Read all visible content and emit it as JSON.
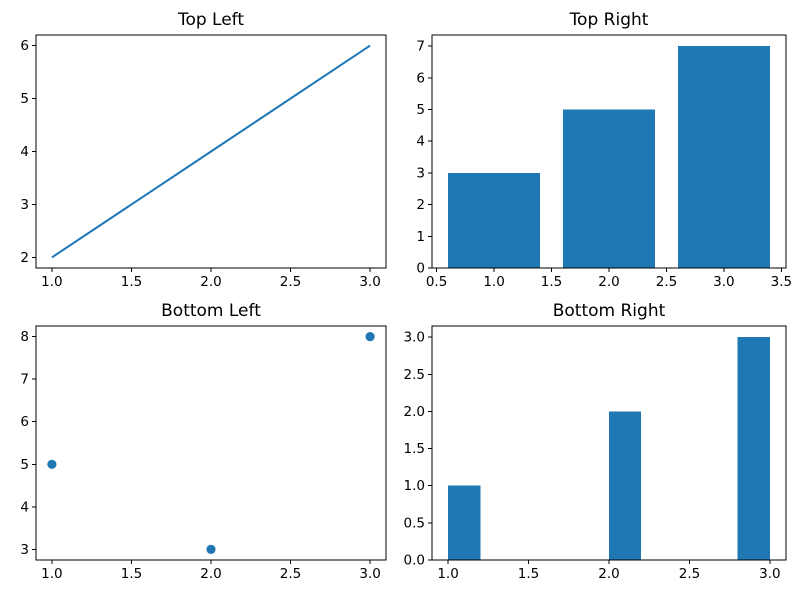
{
  "figure": {
    "background": "#ffffff",
    "accent": "#1f77b4",
    "frame_color": "#000000",
    "text_color": "#000000"
  },
  "chart_data": [
    {
      "type": "line",
      "title": "Top Left",
      "x": [
        1,
        2,
        3
      ],
      "y": [
        2,
        4,
        6
      ],
      "color": "#1f77b4",
      "xlim": [
        0.9,
        3.1
      ],
      "ylim": [
        1.8,
        6.2
      ],
      "xticks": {
        "values": [
          1.0,
          1.5,
          2.0,
          2.5,
          3.0
        ],
        "labels": [
          "1.0",
          "1.5",
          "2.0",
          "2.5",
          "3.0"
        ]
      },
      "yticks": {
        "values": [
          2,
          3,
          4,
          5,
          6
        ],
        "labels": [
          "2",
          "3",
          "4",
          "5",
          "6"
        ]
      },
      "grid": false,
      "legend": null
    },
    {
      "type": "bar",
      "title": "Top Right",
      "categories": [
        1,
        2,
        3
      ],
      "values": [
        3,
        5,
        7
      ],
      "bar_width": 0.8,
      "color": "#1f77b4",
      "xlim": [
        0.46,
        3.54
      ],
      "ylim": [
        0,
        7.35
      ],
      "xticks": {
        "values": [
          0.5,
          1.0,
          1.5,
          2.0,
          2.5,
          3.0,
          3.5
        ],
        "labels": [
          "0.5",
          "1.0",
          "1.5",
          "2.0",
          "2.5",
          "3.0",
          "3.5"
        ]
      },
      "yticks": {
        "values": [
          0,
          1,
          2,
          3,
          4,
          5,
          6,
          7
        ],
        "labels": [
          "0",
          "1",
          "2",
          "3",
          "4",
          "5",
          "6",
          "7"
        ]
      },
      "grid": false,
      "legend": null
    },
    {
      "type": "scatter",
      "title": "Bottom Left",
      "x": [
        1,
        2,
        3
      ],
      "y": [
        5,
        3,
        8
      ],
      "color": "#1f77b4",
      "xlim": [
        0.9,
        3.1
      ],
      "ylim": [
        2.75,
        8.25
      ],
      "xticks": {
        "values": [
          1.0,
          1.5,
          2.0,
          2.5,
          3.0
        ],
        "labels": [
          "1.0",
          "1.5",
          "2.0",
          "2.5",
          "3.0"
        ]
      },
      "yticks": {
        "values": [
          3,
          4,
          5,
          6,
          7,
          8
        ],
        "labels": [
          "3",
          "4",
          "5",
          "6",
          "7",
          "8"
        ]
      },
      "grid": false,
      "legend": null
    },
    {
      "type": "bar",
      "subtype": "histogram",
      "title": "Bottom Right",
      "bars": [
        {
          "x0": 1.0,
          "x1": 1.2,
          "height": 1
        },
        {
          "x0": 2.0,
          "x1": 2.2,
          "height": 2
        },
        {
          "x0": 2.8,
          "x1": 3.0,
          "height": 3
        }
      ],
      "color": "#1f77b4",
      "xlim": [
        0.9,
        3.1
      ],
      "ylim": [
        0,
        3.15
      ],
      "xticks": {
        "values": [
          1.0,
          1.5,
          2.0,
          2.5,
          3.0
        ],
        "labels": [
          "1.0",
          "1.5",
          "2.0",
          "2.5",
          "3.0"
        ]
      },
      "yticks": {
        "values": [
          0.0,
          0.5,
          1.0,
          1.5,
          2.0,
          2.5,
          3.0
        ],
        "labels": [
          "0.0",
          "0.5",
          "1.0",
          "1.5",
          "2.0",
          "2.5",
          "3.0"
        ]
      },
      "grid": false,
      "legend": null
    }
  ]
}
